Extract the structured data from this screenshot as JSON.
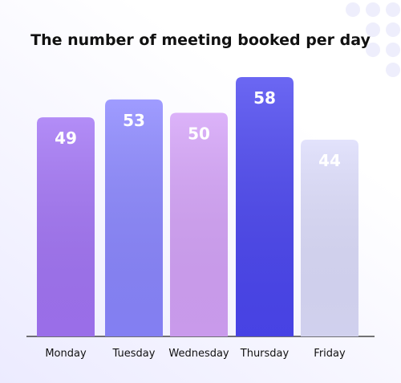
{
  "chart_data": {
    "type": "bar",
    "title": "The number of meeting booked per day",
    "categories": [
      "Monday",
      "Tuesday",
      "Wednesday",
      "Thursday",
      "Friday"
    ],
    "values": [
      49,
      53,
      50,
      58,
      44
    ],
    "colors": [
      "#a274f5",
      "#8a86ff",
      "#d4a2f8",
      "#4b46f0",
      "#dcdcfb"
    ]
  }
}
